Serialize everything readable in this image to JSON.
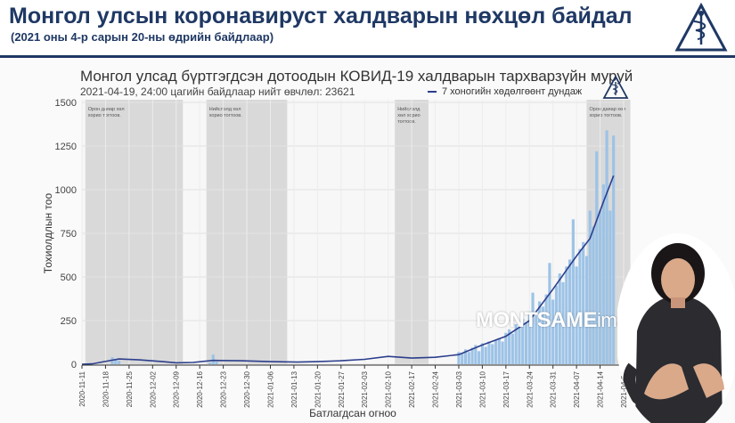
{
  "header": {
    "title": "Монгол улсын коронавируст халдварын нөхцөл байдал",
    "subtitle": "(2021 оны 4-р сарын 20-ны өдрийн байдлаар)",
    "logo_icon": "medical-emblem-icon"
  },
  "chart_data": {
    "type": "bar",
    "title": "Монгол улсад бүртгэгдсэн дотоодын КОВИД-19 халдварын тархварзүйн муруй",
    "subtitle": "2021-04-19, 24:00 цагийн байдлаар нийт өвчлөл: 23621",
    "xlabel": "Батлагдсан огноо",
    "ylabel": "Тохиолдлын тоо",
    "ylim": [
      0,
      1500
    ],
    "yticks": [
      0,
      250,
      500,
      750,
      1000,
      1250,
      1500
    ],
    "x_start": "2020-11-11",
    "x_end": "2021-04-21",
    "xticks": [
      "2020-11-11",
      "2020-11-18",
      "2020-11-25",
      "2020-12-02",
      "2020-12-09",
      "2020-12-16",
      "2020-12-23",
      "2020-12-30",
      "2021-01-06",
      "2021-01-13",
      "2021-01-20",
      "2021-01-27",
      "2021-02-03",
      "2021-02-10",
      "2021-02-17",
      "2021-02-24",
      "2021-03-03",
      "2021-03-10",
      "2021-03-17",
      "2021-03-24",
      "2021-03-31",
      "2021-04-07",
      "2021-04-14",
      "2021-04-21"
    ],
    "legend": {
      "label": "7 хоногийн хөдөлгөөнт дундаж",
      "position": "top"
    },
    "grid": true,
    "colors": {
      "bar": "#9dc3e6",
      "line": "#2c3e8c",
      "shade": "#d9d9d9"
    },
    "lockdowns": [
      {
        "start": "2020-11-12",
        "end": "2020-12-11",
        "label": [
          "Орон даяар хөл",
          "хорио тогтоов."
        ]
      },
      {
        "start": "2020-12-18",
        "end": "2021-01-11",
        "label": [
          "Нийслэлд хөл",
          "хорио тогтоов."
        ]
      },
      {
        "start": "2021-02-12",
        "end": "2021-02-22",
        "label": [
          "Нийслэлд",
          "хөл хорио",
          "тогтоов."
        ]
      },
      {
        "start": "2021-04-10",
        "end": "2021-04-23",
        "label": [
          "Орон даяар хөл",
          "хорио тогтоов."
        ]
      }
    ],
    "series": [
      {
        "kind": "bar",
        "points": [
          [
            "2020-11-20",
            40
          ],
          [
            "2020-11-21",
            28
          ],
          [
            "2020-11-22",
            20
          ],
          [
            "2020-12-19",
            10
          ],
          [
            "2020-12-20",
            55
          ],
          [
            "2020-12-21",
            15
          ],
          [
            "2021-03-03",
            70
          ],
          [
            "2021-03-04",
            65
          ],
          [
            "2021-03-05",
            85
          ],
          [
            "2021-03-06",
            70
          ],
          [
            "2021-03-07",
            95
          ],
          [
            "2021-03-08",
            110
          ],
          [
            "2021-03-09",
            75
          ],
          [
            "2021-03-10",
            120
          ],
          [
            "2021-03-11",
            100
          ],
          [
            "2021-03-12",
            130
          ],
          [
            "2021-03-13",
            115
          ],
          [
            "2021-03-14",
            140
          ],
          [
            "2021-03-15",
            150
          ],
          [
            "2021-03-16",
            130
          ],
          [
            "2021-03-17",
            180
          ],
          [
            "2021-03-18",
            200
          ],
          [
            "2021-03-19",
            175
          ],
          [
            "2021-03-20",
            230
          ],
          [
            "2021-03-21",
            210
          ],
          [
            "2021-03-22",
            260
          ],
          [
            "2021-03-23",
            240
          ],
          [
            "2021-03-24",
            300
          ],
          [
            "2021-03-25",
            410
          ],
          [
            "2021-03-26",
            280
          ],
          [
            "2021-03-27",
            360
          ],
          [
            "2021-03-28",
            330
          ],
          [
            "2021-03-29",
            400
          ],
          [
            "2021-03-30",
            580
          ],
          [
            "2021-03-31",
            370
          ],
          [
            "2021-04-01",
            450
          ],
          [
            "2021-04-02",
            520
          ],
          [
            "2021-04-03",
            470
          ],
          [
            "2021-04-04",
            560
          ],
          [
            "2021-04-05",
            600
          ],
          [
            "2021-04-06",
            830
          ],
          [
            "2021-04-07",
            560
          ],
          [
            "2021-04-08",
            660
          ],
          [
            "2021-04-09",
            700
          ],
          [
            "2021-04-10",
            620
          ],
          [
            "2021-04-11",
            880
          ],
          [
            "2021-04-12",
            790
          ],
          [
            "2021-04-13",
            1220
          ],
          [
            "2021-04-14",
            880
          ],
          [
            "2021-04-15",
            1030
          ],
          [
            "2021-04-16",
            1340
          ],
          [
            "2021-04-17",
            880
          ],
          [
            "2021-04-18",
            1310
          ]
        ]
      },
      {
        "kind": "line",
        "name": "7 хоногийн хөдөлгөөнт дундаж",
        "points": [
          [
            "2020-11-11",
            0
          ],
          [
            "2020-11-14",
            2
          ],
          [
            "2020-11-19",
            20
          ],
          [
            "2020-11-22",
            30
          ],
          [
            "2020-11-28",
            25
          ],
          [
            "2020-12-05",
            15
          ],
          [
            "2020-12-09",
            8
          ],
          [
            "2020-12-14",
            10
          ],
          [
            "2020-12-20",
            22
          ],
          [
            "2020-12-28",
            20
          ],
          [
            "2021-01-06",
            15
          ],
          [
            "2021-01-14",
            12
          ],
          [
            "2021-01-20",
            15
          ],
          [
            "2021-01-27",
            20
          ],
          [
            "2021-02-03",
            28
          ],
          [
            "2021-02-10",
            45
          ],
          [
            "2021-02-17",
            35
          ],
          [
            "2021-02-24",
            40
          ],
          [
            "2021-03-03",
            55
          ],
          [
            "2021-03-10",
            110
          ],
          [
            "2021-03-17",
            160
          ],
          [
            "2021-03-24",
            250
          ],
          [
            "2021-03-31",
            430
          ],
          [
            "2021-04-07",
            620
          ],
          [
            "2021-04-11",
            720
          ],
          [
            "2021-04-15",
            930
          ],
          [
            "2021-04-18",
            1080
          ]
        ]
      }
    ]
  },
  "watermark": {
    "brand": "MONTSAME",
    "suffix": "images"
  },
  "icons": {
    "chart_logo": "medical-emblem-icon",
    "interpreter": "sign-language-interpreter"
  }
}
